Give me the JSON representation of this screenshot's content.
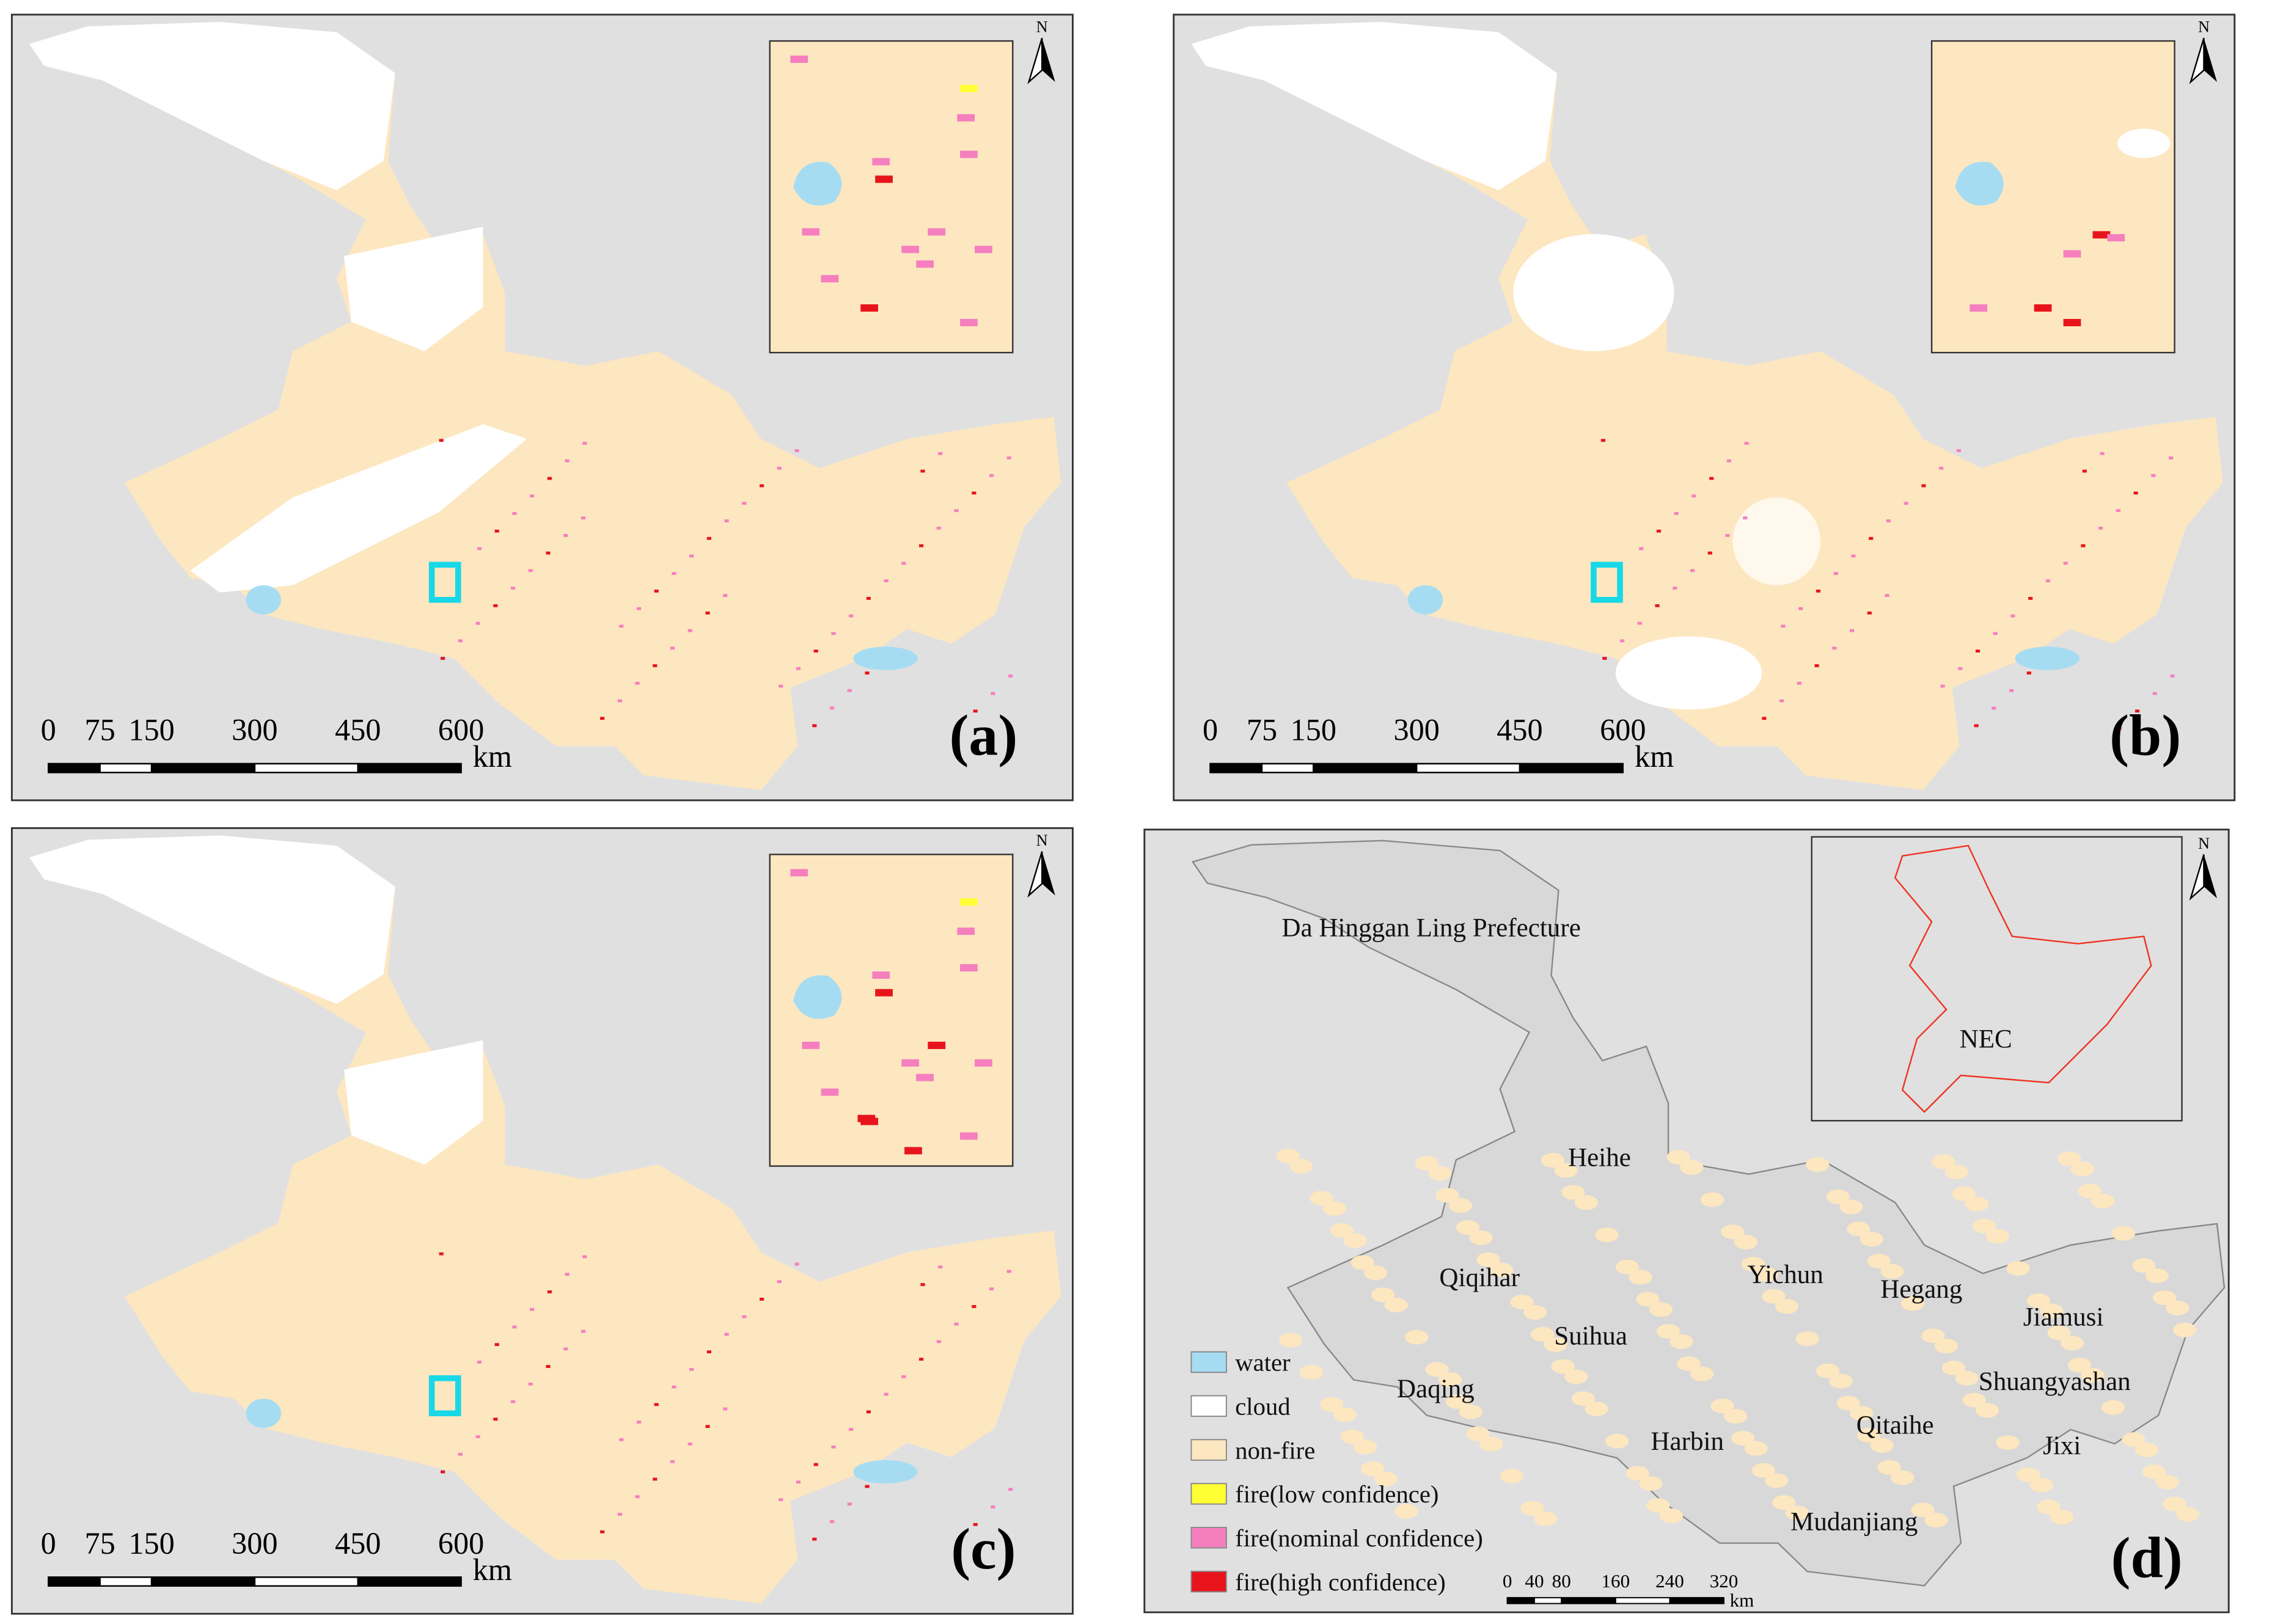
{
  "panels": [
    {
      "label": "(a)",
      "north": "N",
      "scale": {
        "ticks": [
          0,
          75,
          150,
          300,
          450,
          600
        ],
        "unit": "km"
      }
    },
    {
      "label": "(b)",
      "north": "N",
      "scale": {
        "ticks": [
          0,
          75,
          150,
          300,
          450,
          600
        ],
        "unit": "km"
      }
    },
    {
      "label": "(c)",
      "north": "N",
      "scale": {
        "ticks": [
          0,
          75,
          150,
          300,
          450,
          600
        ],
        "unit": "km"
      }
    },
    {
      "label": "(d)",
      "north": "N",
      "scale": {
        "ticks": [
          0,
          40,
          80,
          160,
          240,
          320
        ],
        "unit": "km"
      },
      "regions": [
        "Da Hinggan Ling Prefecture",
        "Heihe",
        "Qiqihar",
        "Yichun",
        "Hegang",
        "Jiamusi",
        "Suihua",
        "Daqing",
        "Shuangyashan",
        "Qitaihe",
        "Harbin",
        "Jixi",
        "Mudanjiang"
      ],
      "inset_label": "NEC",
      "legend": [
        "water",
        "cloud",
        "non-fire",
        "fire(low confidence)",
        "fire(nominal confidence)",
        "fire(high confidence)"
      ]
    }
  ]
}
